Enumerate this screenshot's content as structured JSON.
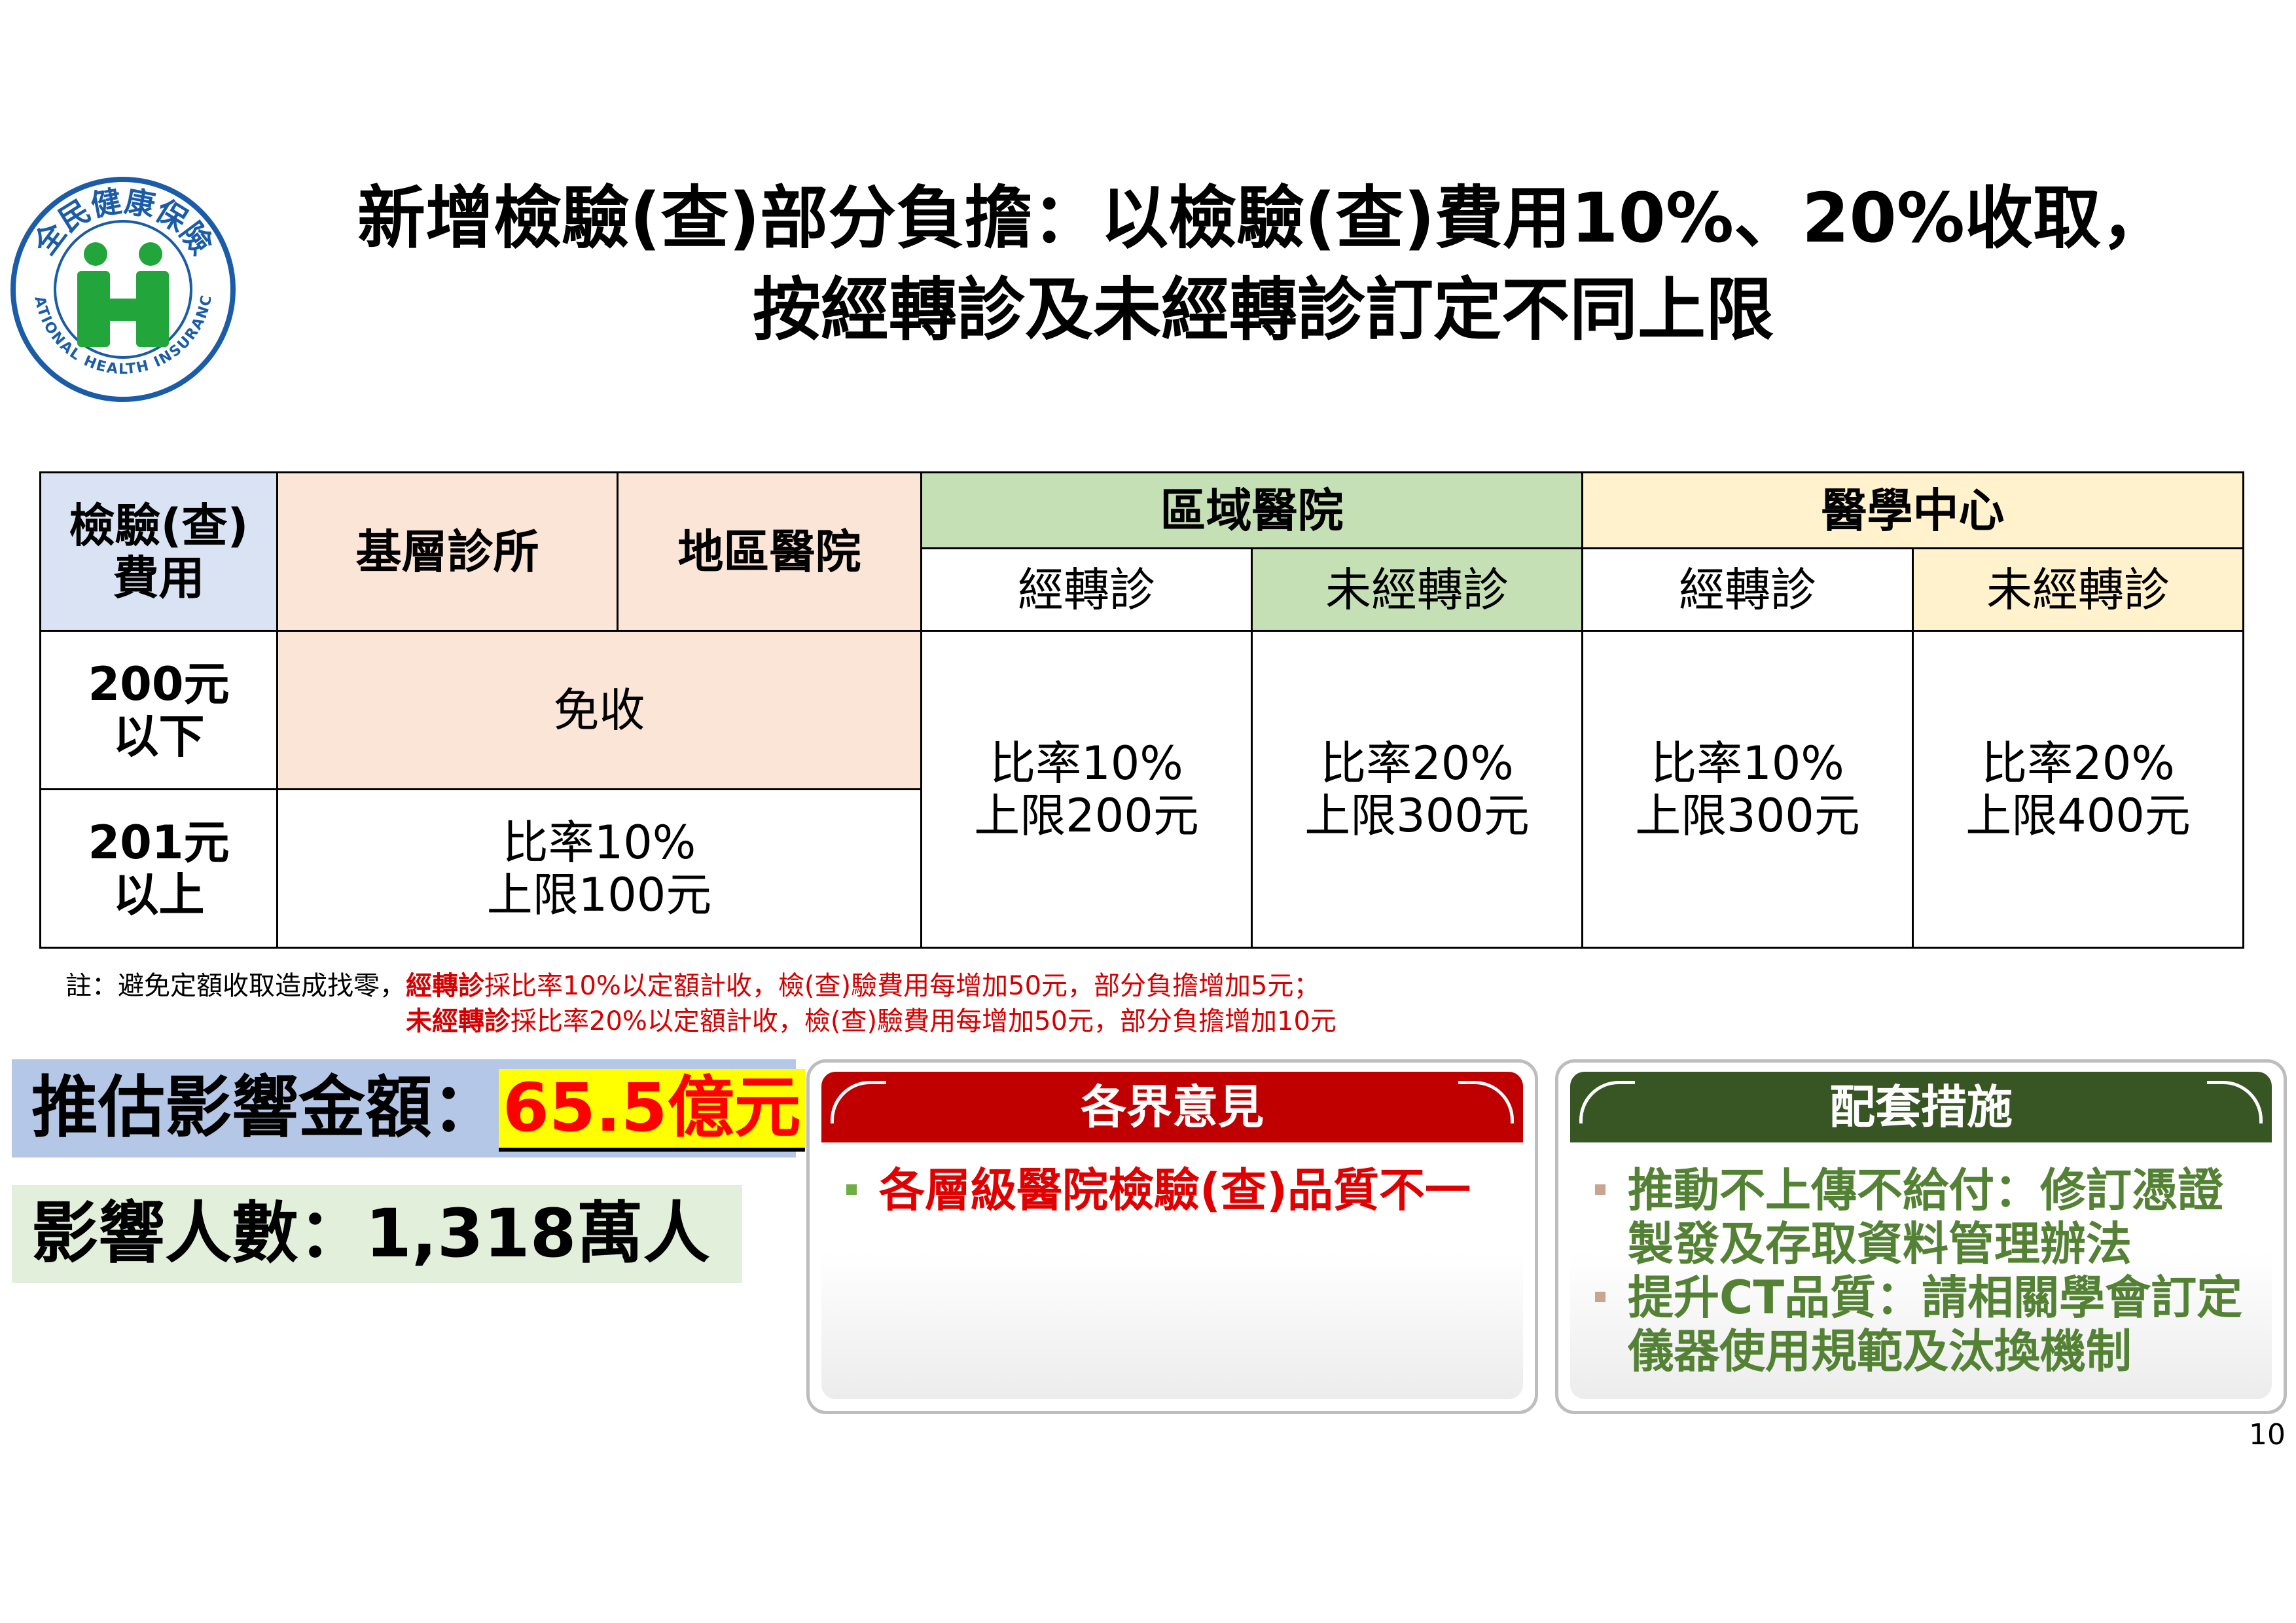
{
  "logo": {
    "top_text": "全民健康保險",
    "bottom_text": "NATIONAL HEALTH INSURANCE",
    "colors": {
      "ring": "#1a5ca8",
      "figure": "#22a53a"
    }
  },
  "title": {
    "line1": "新增檢驗(查)部分負擔：以檢驗(查)費用10%、20%收取，",
    "line2": "按經轉診及未經轉診訂定不同上限"
  },
  "table": {
    "header": {
      "fee": [
        "檢驗(查)",
        "費用"
      ],
      "clinic": "基層診所",
      "district": "地區醫院",
      "regional": "區域醫院",
      "medical_center": "醫學中心",
      "referred": "經轉診",
      "not_referred": "未經轉診"
    },
    "rows": {
      "under200": [
        "200元",
        "以下"
      ],
      "over201": [
        "201元",
        "以上"
      ],
      "exempt": "免收",
      "basic_rate": [
        "比率10%",
        "上限100元"
      ],
      "regional_referred": [
        "比率10%",
        "上限200元"
      ],
      "regional_not_referred": [
        "比率20%",
        "上限300元"
      ],
      "center_referred": [
        "比率10%",
        "上限300元"
      ],
      "center_not_referred": [
        "比率20%",
        "上限400元"
      ]
    }
  },
  "notes": {
    "line1": {
      "prefix": "註：避免定額收取造成找零，",
      "bold": "經轉診",
      "text": "採比率10%以定額計收，檢(查)驗費用每增加50元，部分負擔增加5元；"
    },
    "line2": {
      "bold": "未經轉診",
      "text": "採比率20%以定額計收，檢(查)驗費用每增加50元，部分負擔增加10元"
    }
  },
  "impact": {
    "amount_label": "推估影響金額：",
    "amount_value": "65.5億元",
    "people": "影響人數：1,318萬人"
  },
  "opinions": {
    "title": "各界意見",
    "items": [
      "各層級醫院檢驗(查)品質不一"
    ]
  },
  "measures": {
    "title": "配套措施",
    "items": [
      "推動不上傳不給付：修訂憑證製發及存取資料管理辦法",
      "提升CT品質：請相關學會訂定儀器使用規範及汰換機制"
    ]
  },
  "page_number": "10"
}
